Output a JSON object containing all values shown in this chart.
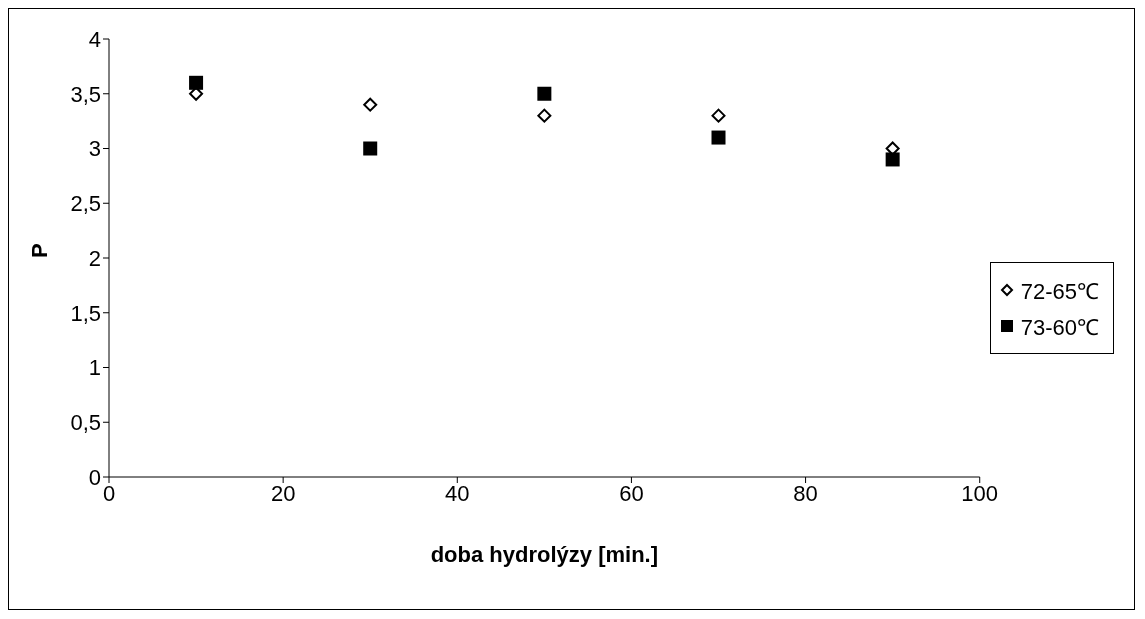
{
  "chart_data": {
    "type": "scatter",
    "xlabel": "doba hydrolýzy [min.]",
    "ylabel": "P",
    "x": [
      10,
      30,
      50,
      70,
      90
    ],
    "series": [
      {
        "name": "72-65℃",
        "color": "#000000",
        "marker": "diamond",
        "values": [
          3.5,
          3.4,
          3.3,
          3.3,
          3.0
        ]
      },
      {
        "name": "73-60℃",
        "color": "#000000",
        "marker": "square",
        "values": [
          3.6,
          3.0,
          3.5,
          3.1,
          2.9
        ]
      }
    ],
    "xlim": [
      0,
      100
    ],
    "xticks": [
      0,
      20,
      40,
      60,
      80,
      100
    ],
    "ylim": [
      0,
      4
    ],
    "yticks": [
      0,
      {
        "value": 0.5,
        "label": "0,5"
      },
      1,
      {
        "value": 1.5,
        "label": "1,5"
      },
      2,
      {
        "value": 2.5,
        "label": "2,5"
      },
      3,
      {
        "value": 3.5,
        "label": "3,5"
      },
      4
    ],
    "grid": false,
    "legend": "right"
  }
}
